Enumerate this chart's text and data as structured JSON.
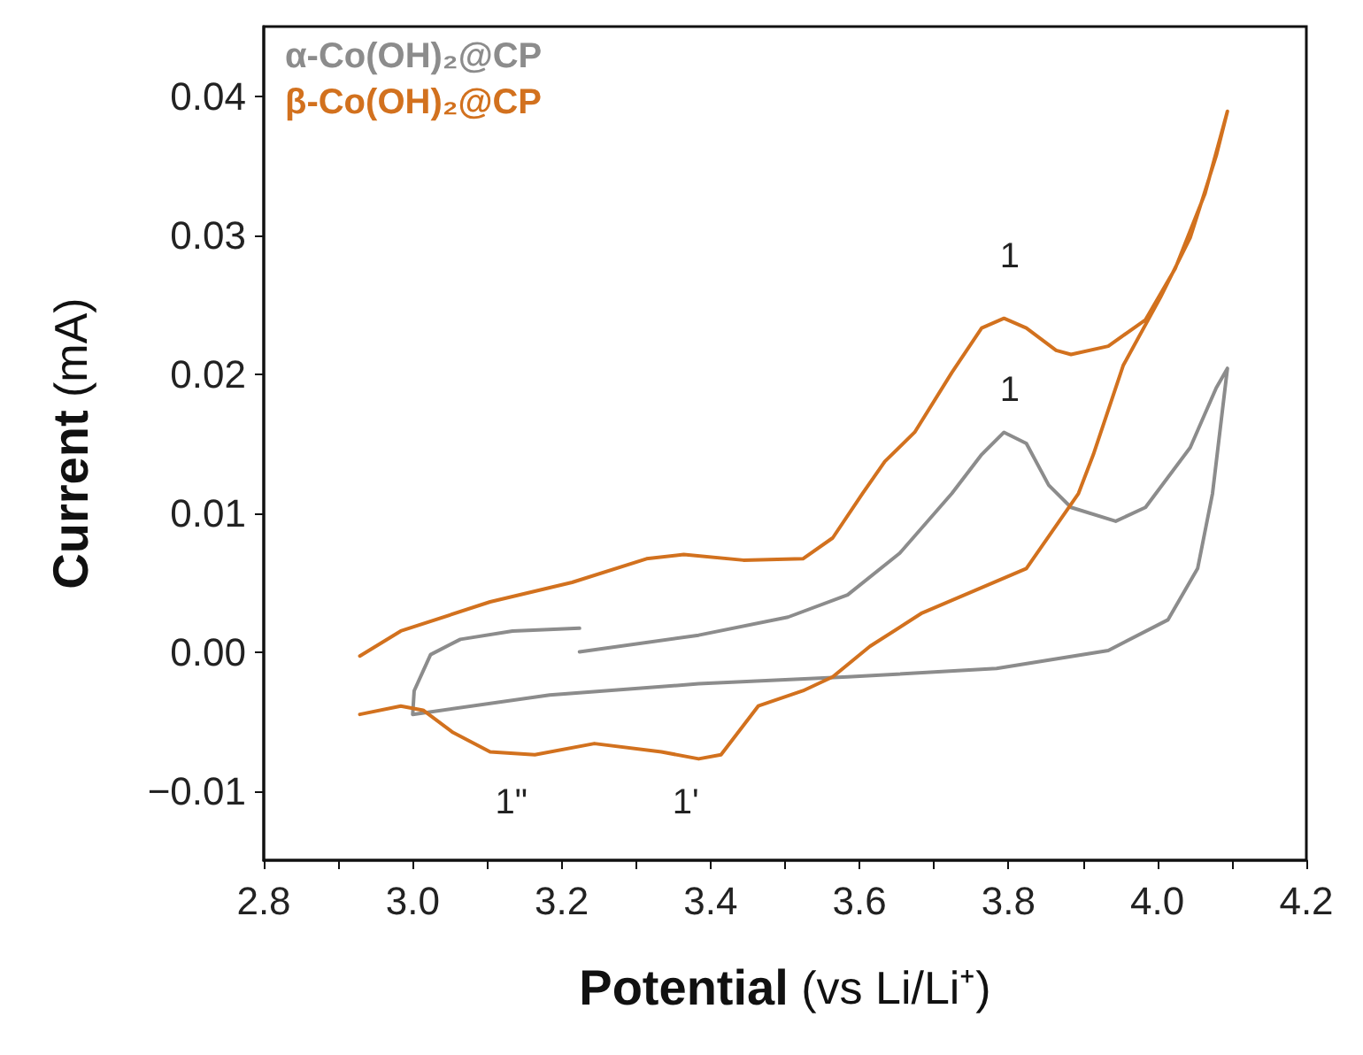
{
  "chart_data": {
    "type": "line",
    "xlabel": "Potential (vs Li/Li⁺)",
    "ylabel": "Current (mA)",
    "xlim": [
      2.8,
      4.2
    ],
    "xticks": [
      2.8,
      {
        "value": 2.9,
        "label": null
      },
      {
        "value": 3,
        "label": "3.0"
      },
      {
        "value": 3.1,
        "label": null
      },
      3.2,
      {
        "value": 3.3,
        "label": null
      },
      3.4,
      {
        "value": 3.5,
        "label": null
      },
      3.6,
      {
        "value": 3.7,
        "label": null
      },
      3.8,
      {
        "value": 3.9,
        "label": null
      },
      {
        "value": 4,
        "label": "4.0"
      },
      {
        "value": 4.1,
        "label": null
      },
      4.2
    ],
    "ylim": [
      -0.015,
      0.045
    ],
    "yticks": [
      {
        "value": -0.01,
        "label": "−0.01"
      },
      {
        "value": 0,
        "label": "0.00"
      },
      0.01,
      0.02,
      0.03,
      0.04
    ],
    "grid": false,
    "legend": "top left",
    "marker": "none",
    "line_style": "solid",
    "series": [
      {
        "name": "α-Co(OH)₂@CP",
        "color": "#8c8c8c",
        "x": [
          3.224,
          3.384,
          3.504,
          3.584,
          3.654,
          3.724,
          3.764,
          3.794,
          3.824,
          3.854,
          3.884,
          3.944,
          3.984,
          4.044,
          4.079,
          4.094,
          4.074,
          4.054,
          4.014,
          3.934,
          3.784,
          3.584,
          3.384,
          3.184,
          3.0,
          3.002,
          3.024,
          3.064,
          3.134,
          3.224
        ],
        "values": [
          0.0,
          0.0012,
          0.0025,
          0.0041,
          0.0071,
          0.0114,
          0.0142,
          0.0158,
          0.015,
          0.012,
          0.0104,
          0.0094,
          0.0104,
          0.0147,
          0.019,
          0.0204,
          0.0114,
          0.006,
          0.0023,
          0.0001,
          -0.0012,
          -0.0018,
          -0.0023,
          -0.0031,
          -0.0045,
          -0.0028,
          -0.0002,
          0.0009,
          0.0015,
          0.0017
        ]
      },
      {
        "name": "β-Co(OH)₂@CP",
        "color": "#d2711e",
        "x": [
          2.929,
          2.984,
          3.104,
          3.214,
          3.314,
          3.364,
          3.444,
          3.524,
          3.564,
          3.604,
          3.634,
          3.674,
          3.724,
          3.764,
          3.794,
          3.824,
          3.864,
          3.884,
          3.934,
          3.984,
          4.024,
          4.064,
          4.094,
          4.079,
          4.044,
          4.004,
          3.954,
          3.914,
          3.894,
          3.824,
          3.684,
          3.614,
          3.564,
          3.524,
          3.464,
          3.444,
          3.414,
          3.384,
          3.334,
          3.244,
          3.164,
          3.104,
          3.054,
          3.014,
          2.984,
          2.929
        ],
        "values": [
          -0.0003,
          0.0015,
          0.0036,
          0.005,
          0.0067,
          0.007,
          0.0066,
          0.0067,
          0.0082,
          0.0114,
          0.0137,
          0.0158,
          0.0201,
          0.0233,
          0.024,
          0.0233,
          0.0217,
          0.0214,
          0.022,
          0.0239,
          0.0276,
          0.033,
          0.0389,
          0.0357,
          0.0298,
          0.0255,
          0.0206,
          0.0142,
          0.0114,
          0.006,
          0.0028,
          0.0004,
          -0.0018,
          -0.0028,
          -0.0039,
          -0.0053,
          -0.0074,
          -0.0077,
          -0.0072,
          -0.0066,
          -0.0074,
          -0.0072,
          -0.0058,
          -0.0042,
          -0.0039,
          -0.0045
        ]
      }
    ],
    "annotations": [
      "1",
      "1",
      "1\"",
      "1'"
    ]
  }
}
